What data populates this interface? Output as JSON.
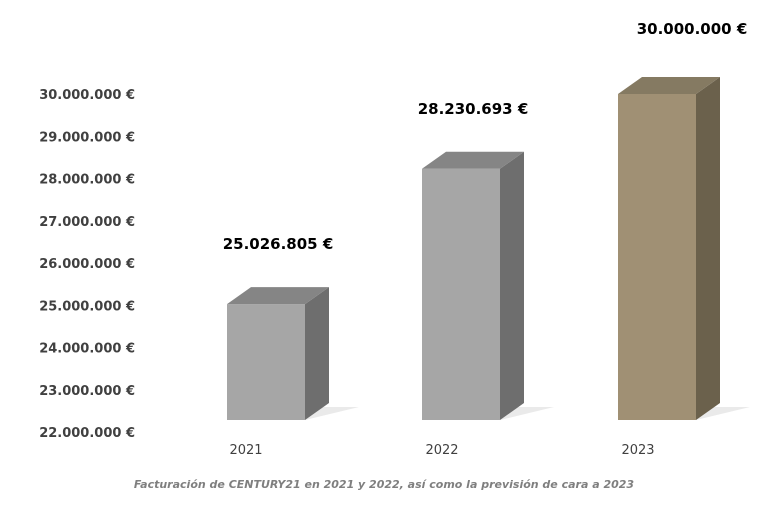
{
  "chart_data": {
    "type": "bar",
    "style": "3d-column",
    "categories": [
      "2021",
      "2022",
      "2023"
    ],
    "values": [
      25026805,
      28230693,
      30000000
    ],
    "data_labels": [
      "25.026.805 €",
      "28.230.693 €",
      "30.000.000 €"
    ],
    "ylim": [
      22000000,
      30000000
    ],
    "yticks": [
      {
        "value": 30000000,
        "label": "30.000.000 €"
      },
      {
        "value": 29000000,
        "label": "29.000.000 €"
      },
      {
        "value": 28000000,
        "label": "28.000.000 €"
      },
      {
        "value": 27000000,
        "label": "27.000.000 €"
      },
      {
        "value": 26000000,
        "label": "26.000.000 €"
      },
      {
        "value": 25000000,
        "label": "25.000.000 €"
      },
      {
        "value": 24000000,
        "label": "24.000.000 €"
      },
      {
        "value": 23000000,
        "label": "23.000.000 €"
      },
      {
        "value": 22000000,
        "label": "22.000.000 €"
      }
    ],
    "grid": false,
    "legend": "none",
    "colors": [
      {
        "front": "#a6a6a6",
        "side": "#6e6e6e",
        "top": "#858585"
      },
      {
        "front": "#a6a6a6",
        "side": "#6e6e6e",
        "top": "#858585"
      },
      {
        "front": "#a09074",
        "side": "#6b614c",
        "top": "#857a62"
      }
    ],
    "caption": "Facturación de CENTURY21 en 2021 y 2022, así como la previsión de cara a 2023"
  }
}
